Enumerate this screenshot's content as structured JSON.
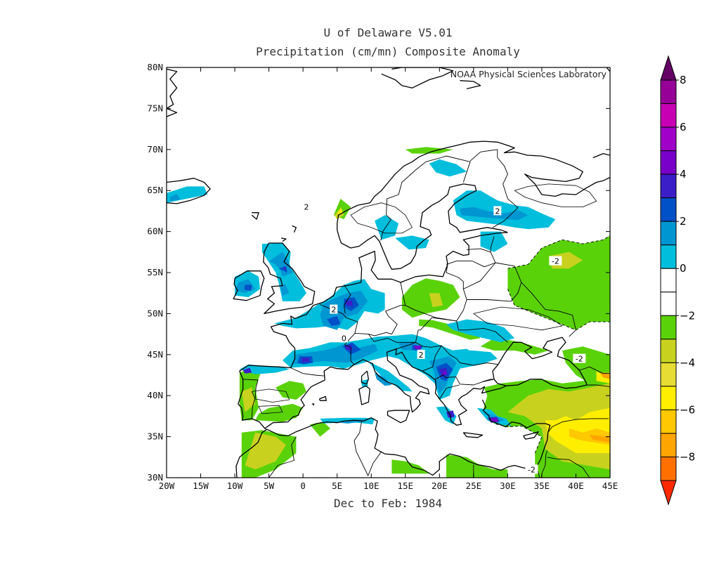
{
  "title_line1": "U of Delaware V5.01",
  "title_line2": "Precipitation (cm/mn) Composite Anomaly",
  "credit": "NOAA Physical Sciences Laboratory",
  "period_label": "Dec to Feb: 1984",
  "chart_data": {
    "type": "heatmap",
    "projection": "lat-lon",
    "variable": "Precipitation (cm/mn) Composite Anomaly",
    "lon_range": [
      -20,
      45
    ],
    "lat_range": [
      30,
      80
    ],
    "lon_ticks": [
      "20W",
      "15W",
      "10W",
      "5W",
      "0",
      "5E",
      "10E",
      "15E",
      "20E",
      "25E",
      "30E",
      "35E",
      "40E",
      "45E"
    ],
    "lat_ticks": [
      "80N",
      "75N",
      "70N",
      "65N",
      "60N",
      "55N",
      "50N",
      "45N",
      "40N",
      "35N",
      "30N"
    ],
    "colorbar": {
      "ticks": [
        "8",
        "6",
        "4",
        "2",
        "0",
        "−2",
        "−4",
        "−6",
        "−8"
      ],
      "levels": [
        -8,
        -7,
        -6,
        -5,
        -4,
        -3,
        -2,
        -1,
        1,
        2,
        3,
        4,
        5,
        6,
        7,
        8
      ],
      "colors": [
        "#ff2a00",
        "#ff7000",
        "#ffa500",
        "#ffc800",
        "#ffee00",
        "#e6dc33",
        "#c8d21e",
        "#5ad20a",
        "#ffffff",
        "#ffffff",
        "#00bedc",
        "#0096d2",
        "#0050c8",
        "#3c1ec8",
        "#7800c8",
        "#a000c8",
        "#c800b4",
        "#960096",
        "#640064"
      ]
    },
    "contour_labels": [
      {
        "text": "2",
        "lon": 0.5,
        "lat": 63.0
      },
      {
        "text": "2",
        "lon": 4.5,
        "lat": 50.5
      },
      {
        "text": "0",
        "lon": 6.0,
        "lat": 47.0
      },
      {
        "text": "2",
        "lon": 17.3,
        "lat": 45.0
      },
      {
        "text": "2",
        "lon": 28.5,
        "lat": 62.5
      },
      {
        "text": "-2",
        "lon": 37.0,
        "lat": 56.4
      },
      {
        "text": "-2",
        "lon": 40.5,
        "lat": 44.5
      },
      {
        "text": "-2",
        "lon": 33.5,
        "lat": 31.0
      }
    ]
  }
}
